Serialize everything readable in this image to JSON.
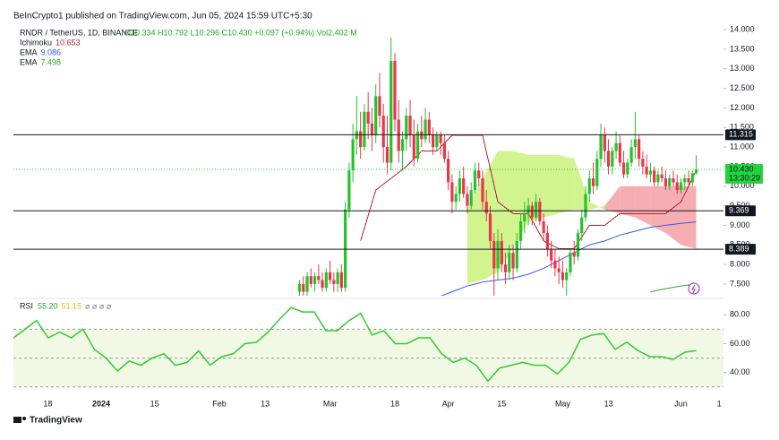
{
  "chart_data": {
    "type": "candlestick",
    "publisher": "BeInCrypto1 published on TradingView.com, Jun 05, 2024 15:59 UTC+5:30",
    "title": "RNDR / TetherUS, 1D, BINANCE",
    "subtitle": "O10.334 H10.792 L10.296 C10.430 +0.097 (+0.94%) Vol2.402 M",
    "brand": "TradingView",
    "x_labels": [
      "18",
      "2024",
      "15",
      "Feb",
      "13",
      "Mar",
      "18",
      "Apr",
      "15",
      "May",
      "13",
      "Jun",
      "1"
    ],
    "up_color": "#26c22a",
    "down_color": "#e8364a",
    "ylim": [
      7.2,
      14.3
    ],
    "yticks": [
      {
        "value": 7.5,
        "label": "7.500"
      },
      {
        "value": 8,
        "label": "8.000"
      },
      {
        "value": 8.5,
        "label": "8.500"
      },
      {
        "value": 9,
        "label": "9.000"
      },
      {
        "value": 9.5,
        "label": "9.500"
      },
      {
        "value": 10,
        "label": "10.000"
      },
      {
        "value": 10.5,
        "label": "10.500"
      },
      {
        "value": 11,
        "label": "11.000"
      },
      {
        "value": 11.5,
        "label": "11.500"
      },
      {
        "value": 12,
        "label": "12.000"
      },
      {
        "value": 12.5,
        "label": "12.500"
      },
      {
        "value": 13,
        "label": "13.000"
      },
      {
        "value": 13.5,
        "label": "13.500"
      },
      {
        "value": 14,
        "label": "14.000"
      }
    ],
    "candles": [
      [
        7.3,
        7.6,
        7.1,
        7.5
      ],
      [
        7.5,
        7.7,
        7.2,
        7.3
      ],
      [
        7.3,
        7.8,
        7.2,
        7.7
      ],
      [
        7.7,
        7.9,
        7.4,
        7.5
      ],
      [
        7.5,
        7.8,
        7.3,
        7.7
      ],
      [
        7.7,
        8.0,
        7.5,
        7.6
      ],
      [
        7.6,
        7.8,
        7.3,
        7.4
      ],
      [
        7.4,
        7.9,
        7.3,
        7.8
      ],
      [
        7.8,
        8.1,
        7.5,
        7.6
      ],
      [
        7.6,
        7.8,
        7.3,
        7.5
      ],
      [
        7.5,
        7.9,
        7.3,
        7.8
      ],
      [
        7.8,
        8.0,
        7.3,
        7.4
      ],
      [
        7.4,
        9.6,
        7.3,
        9.4
      ],
      [
        9.4,
        10.6,
        9.2,
        10.4
      ],
      [
        10.4,
        11.6,
        10.1,
        11.2
      ],
      [
        11.2,
        12.3,
        10.8,
        11.4
      ],
      [
        11.4,
        11.9,
        10.7,
        11.0
      ],
      [
        11.0,
        12.1,
        10.9,
        11.9
      ],
      [
        11.9,
        12.4,
        11.2,
        11.6
      ],
      [
        11.6,
        12.0,
        10.9,
        11.3
      ],
      [
        11.3,
        12.6,
        11.1,
        12.3
      ],
      [
        12.3,
        12.9,
        11.5,
        11.8
      ],
      [
        11.8,
        12.1,
        10.6,
        11.0
      ],
      [
        11.0,
        11.8,
        10.3,
        10.6
      ],
      [
        10.6,
        13.8,
        10.4,
        13.2
      ],
      [
        13.2,
        13.4,
        11.4,
        11.7
      ],
      [
        11.7,
        12.2,
        10.6,
        10.9
      ],
      [
        10.9,
        11.4,
        10.4,
        11.2
      ],
      [
        11.2,
        12.0,
        10.9,
        11.8
      ],
      [
        11.8,
        12.2,
        11.0,
        11.3
      ],
      [
        11.3,
        11.7,
        10.5,
        10.7
      ],
      [
        10.7,
        11.6,
        10.6,
        11.4
      ],
      [
        11.4,
        11.8,
        11.0,
        11.2
      ],
      [
        11.2,
        12.0,
        11.1,
        11.7
      ],
      [
        11.7,
        11.9,
        11.1,
        11.3
      ],
      [
        11.3,
        11.5,
        10.8,
        11.0
      ],
      [
        11.0,
        11.4,
        10.9,
        11.3
      ],
      [
        11.3,
        11.4,
        10.8,
        11.1
      ],
      [
        11.1,
        11.3,
        10.6,
        10.7
      ],
      [
        10.7,
        10.9,
        9.9,
        10.1
      ],
      [
        10.1,
        10.3,
        9.3,
        9.6
      ],
      [
        9.6,
        10.0,
        9.4,
        9.8
      ],
      [
        9.8,
        10.4,
        9.6,
        10.2
      ],
      [
        10.2,
        10.5,
        9.7,
        9.8
      ],
      [
        9.8,
        10.0,
        9.3,
        9.5
      ],
      [
        9.5,
        10.1,
        9.4,
        9.9
      ],
      [
        9.9,
        10.6,
        9.8,
        10.4
      ],
      [
        10.4,
        10.6,
        10.0,
        10.2
      ],
      [
        10.2,
        10.4,
        9.4,
        9.6
      ],
      [
        9.6,
        9.9,
        9.1,
        9.3
      ],
      [
        9.3,
        9.5,
        8.4,
        8.6
      ],
      [
        8.6,
        8.8,
        7.1,
        7.9
      ],
      [
        7.9,
        8.9,
        7.6,
        8.6
      ],
      [
        8.6,
        8.8,
        7.8,
        8.0
      ],
      [
        8.0,
        8.3,
        7.5,
        7.8
      ],
      [
        7.8,
        8.5,
        7.6,
        8.3
      ],
      [
        8.3,
        8.5,
        7.6,
        7.9
      ],
      [
        7.9,
        8.8,
        7.8,
        8.6
      ],
      [
        8.6,
        9.3,
        8.4,
        9.1
      ],
      [
        9.1,
        9.6,
        8.8,
        9.3
      ],
      [
        9.3,
        9.7,
        9.0,
        9.5
      ],
      [
        9.5,
        9.6,
        9.0,
        9.2
      ],
      [
        9.2,
        9.8,
        9.1,
        9.6
      ],
      [
        9.6,
        9.7,
        9.0,
        9.1
      ],
      [
        9.1,
        9.3,
        8.6,
        8.8
      ],
      [
        8.8,
        9.0,
        8.2,
        8.4
      ],
      [
        8.4,
        8.6,
        7.9,
        8.1
      ],
      [
        8.1,
        8.4,
        7.7,
        7.9
      ],
      [
        7.9,
        8.2,
        7.5,
        7.8
      ],
      [
        7.8,
        8.1,
        7.4,
        7.6
      ],
      [
        7.6,
        7.9,
        7.2,
        7.8
      ],
      [
        7.8,
        8.4,
        7.7,
        8.3
      ],
      [
        8.3,
        8.6,
        8.0,
        8.2
      ],
      [
        8.2,
        8.9,
        8.1,
        8.8
      ],
      [
        8.8,
        9.4,
        8.6,
        9.2
      ],
      [
        9.2,
        10.0,
        9.1,
        9.8
      ],
      [
        9.8,
        10.4,
        9.6,
        10.2
      ],
      [
        10.2,
        10.6,
        9.8,
        10.0
      ],
      [
        10.0,
        10.9,
        9.9,
        10.7
      ],
      [
        10.7,
        11.6,
        10.5,
        11.3
      ],
      [
        11.3,
        11.5,
        10.6,
        10.9
      ],
      [
        10.9,
        11.2,
        10.3,
        10.5
      ],
      [
        10.5,
        11.0,
        10.3,
        10.9
      ],
      [
        10.9,
        11.4,
        10.7,
        11.1
      ],
      [
        11.1,
        11.3,
        10.5,
        10.6
      ],
      [
        10.6,
        10.9,
        10.2,
        10.3
      ],
      [
        10.3,
        10.7,
        10.2,
        10.6
      ],
      [
        10.6,
        11.2,
        10.5,
        11.0
      ],
      [
        11.0,
        11.9,
        10.7,
        11.2
      ],
      [
        11.2,
        11.3,
        10.5,
        10.7
      ],
      [
        10.7,
        10.9,
        10.3,
        10.5
      ],
      [
        10.5,
        10.8,
        10.2,
        10.3
      ],
      [
        10.3,
        10.6,
        10.1,
        10.4
      ],
      [
        10.4,
        10.5,
        10.0,
        10.1
      ],
      [
        10.1,
        10.4,
        10.0,
        10.3
      ],
      [
        10.3,
        10.5,
        10.1,
        10.2
      ],
      [
        10.2,
        10.4,
        9.9,
        10.0
      ],
      [
        10.0,
        10.3,
        9.9,
        10.2
      ],
      [
        10.2,
        10.4,
        10.0,
        10.1
      ],
      [
        10.1,
        10.3,
        9.8,
        9.9
      ],
      [
        9.9,
        10.2,
        9.8,
        10.1
      ],
      [
        10.1,
        10.3,
        9.9,
        10.2
      ],
      [
        10.2,
        10.4,
        10.0,
        10.1
      ],
      [
        10.1,
        10.4,
        10.0,
        10.33
      ],
      [
        10.334,
        10.792,
        10.296,
        10.43
      ]
    ],
    "indicators": [
      {
        "name": "Ichimoku",
        "value": 10.653,
        "color": "#b3202c",
        "values": [
          null,
          null,
          null,
          null,
          8.6,
          9.9,
          10.2,
          10.5,
          10.9,
          10.9,
          11.3,
          11.3,
          11.3,
          9.6,
          9.3,
          9.3,
          8.6,
          8.4,
          8.4,
          9.0,
          9.0,
          9.3,
          9.3,
          9.3,
          9.3,
          9.6,
          10.4
        ]
      },
      {
        "name": "EMA",
        "value": 9.086,
        "color": "#3b5bdb",
        "values": [
          null,
          null,
          null,
          null,
          null,
          null,
          null,
          null,
          null,
          7.15,
          7.3,
          7.45,
          7.55,
          7.6,
          7.65,
          7.75,
          7.9,
          8.1,
          8.3,
          8.5,
          8.6,
          8.75,
          8.85,
          8.95,
          9.0,
          9.05,
          9.086
        ]
      },
      {
        "name": "EMA",
        "value": 7.498,
        "color": "#2fa52f",
        "values": [
          null,
          null,
          null,
          null,
          null,
          null,
          null,
          null,
          null,
          null,
          null,
          null,
          null,
          null,
          null,
          null,
          null,
          null,
          null,
          null,
          null,
          null,
          null,
          7.3,
          7.38,
          7.45,
          7.498
        ]
      }
    ],
    "cloud": {
      "up_color": "#c9f27a",
      "down_color": "#f4a0a6",
      "span_a": [
        null,
        null,
        null,
        null,
        null,
        null,
        null,
        null,
        null,
        null,
        null,
        9.4,
        10.2,
        10.9,
        10.9,
        10.8,
        10.8,
        10.8,
        10.7,
        9.6,
        9.4,
        9.3,
        9.2,
        9.0,
        8.8,
        8.5,
        8.4
      ],
      "span_b": [
        null,
        null,
        null,
        null,
        null,
        null,
        null,
        null,
        null,
        null,
        null,
        7.5,
        7.6,
        7.8,
        8.4,
        9.1,
        9.2,
        9.3,
        9.4,
        9.4,
        9.5,
        10.0,
        10.0,
        10.0,
        10.0,
        10.0,
        10.0
      ]
    },
    "levels": [
      11.315,
      9.369,
      8.389
    ],
    "last_price": {
      "value": 10.43,
      "label": "10.430",
      "countdown": "13:30:29",
      "color": "#22d43c"
    },
    "rsi": {
      "name": "RSI",
      "value": 55.2,
      "value_label": "55.20",
      "ma": 51.15,
      "extra": "⌀ ⌀ ⌀ ⌀",
      "color": "#2ecc2e",
      "ylim": [
        28,
        89.5
      ],
      "yticks": [
        {
          "value": 40,
          "label": "40.00"
        },
        {
          "value": 60,
          "label": "60.00"
        },
        {
          "value": 80,
          "label": "80.00"
        }
      ],
      "bands": [
        70,
        50,
        30
      ],
      "values": [
        64,
        70,
        76,
        64,
        68,
        64,
        70,
        56,
        50,
        41,
        48,
        45,
        50,
        53,
        45,
        47,
        55,
        45,
        51,
        53,
        60,
        61,
        68,
        77,
        85,
        82,
        82,
        69,
        69,
        76,
        81,
        66,
        69,
        60,
        60,
        64,
        64,
        53,
        47,
        50,
        45,
        34,
        43,
        45,
        47,
        45,
        45,
        39,
        47,
        63,
        66,
        67,
        56,
        61,
        55,
        51,
        51,
        49,
        54,
        55.2
      ]
    }
  }
}
